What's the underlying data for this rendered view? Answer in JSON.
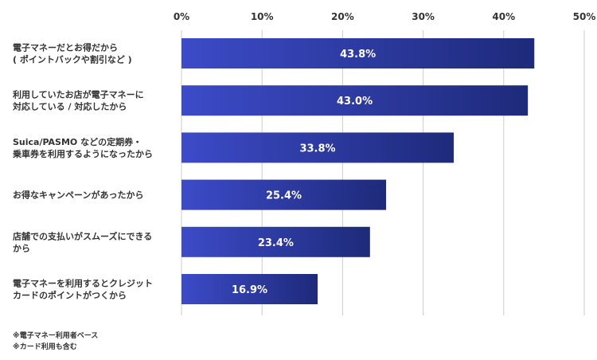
{
  "chart_data": {
    "type": "bar",
    "orientation": "horizontal",
    "categories": [
      [
        "電子マネーだとお得だから",
        "( ポイントバックや割引など )"
      ],
      [
        "利用していたお店が電子マネーに",
        "対応している / 対応したから"
      ],
      [
        "Suica/PASMO などの定期券・",
        "乗車券を利用するようになったから"
      ],
      [
        "お得なキャンペーンがあったから"
      ],
      [
        "店舗での支払いがスムーズにできる",
        "から"
      ],
      [
        "電子マネーを利用するとクレジット",
        "カードのポイントがつくから"
      ]
    ],
    "values": [
      43.8,
      43.0,
      33.8,
      25.4,
      23.4,
      16.9
    ],
    "value_labels": [
      "43.8%",
      "43.0%",
      "33.8%",
      "25.4%",
      "23.4%",
      "16.9%"
    ],
    "xlim": [
      0,
      50
    ],
    "xticks": [
      0,
      10,
      20,
      30,
      40,
      50
    ],
    "xtick_labels": [
      "0%",
      "10%",
      "20%",
      "30%",
      "40%",
      "50%"
    ],
    "x_axis_position": "top",
    "grid": true,
    "bar_color_start": "#3c4bc8",
    "bar_color_end": "#1e2a7a",
    "gridline_color": "#cccccc",
    "title": "",
    "xlabel": "",
    "ylabel": ""
  },
  "notes": [
    "※電子マネー利用者ベース",
    "※カード利用も含む"
  ]
}
